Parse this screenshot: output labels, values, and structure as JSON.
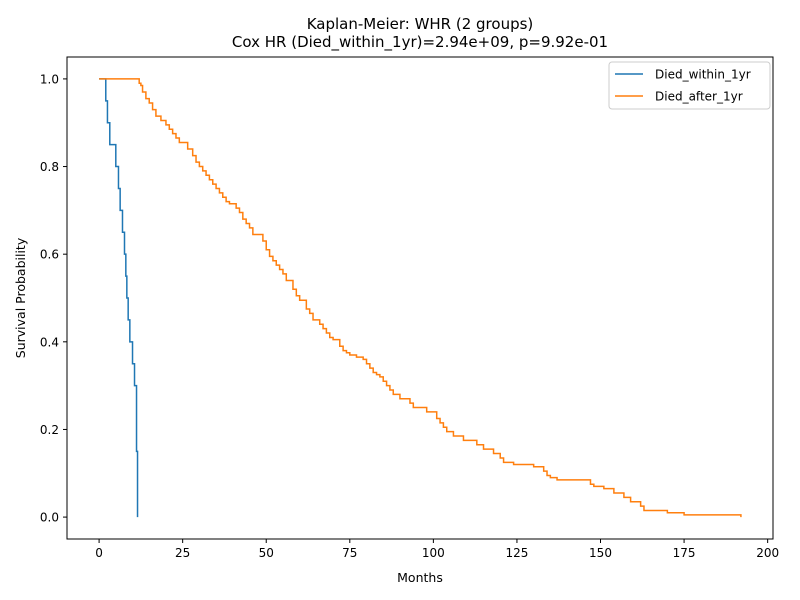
{
  "chart_data": {
    "type": "line",
    "title": "Kaplan-Meier: WHR (2 groups)",
    "subtitle": "Cox HR (Died_within_1yr)=2.94e+09, p=9.92e-01",
    "xlabel": "Months",
    "ylabel": "Survival Probability",
    "xlim": [
      -9.6,
      201.6
    ],
    "ylim": [
      -0.05,
      1.05
    ],
    "xticks": [
      0,
      25,
      50,
      75,
      100,
      125,
      150,
      175,
      200
    ],
    "yticks": [
      0.0,
      0.2,
      0.4,
      0.6,
      0.8,
      1.0
    ],
    "xtick_labels": [
      "0",
      "25",
      "50",
      "75",
      "100",
      "125",
      "150",
      "175",
      "200"
    ],
    "ytick_labels": [
      "0.0",
      "0.2",
      "0.4",
      "0.6",
      "0.8",
      "1.0"
    ],
    "grid": false,
    "legend_position": "top-right",
    "series": [
      {
        "name": "Died_within_1yr",
        "color": "#1f77b4",
        "step": "post",
        "x": [
          0,
          2.0,
          2.5,
          3.2,
          5.0,
          5.8,
          6.3,
          7.0,
          7.6,
          8.0,
          8.3,
          8.7,
          9.2,
          10.0,
          10.6,
          11.2,
          11.5
        ],
        "y": [
          1.0,
          0.95,
          0.9,
          0.85,
          0.8,
          0.75,
          0.7,
          0.65,
          0.6,
          0.55,
          0.5,
          0.45,
          0.4,
          0.35,
          0.3,
          0.15,
          0.0
        ]
      },
      {
        "name": "Died_after_1yr",
        "color": "#ff7f0e",
        "step": "post",
        "x": [
          0,
          12.0,
          12.5,
          13.0,
          14.0,
          15.0,
          16.0,
          17.0,
          18.5,
          20.0,
          21.0,
          22.0,
          23.0,
          24.0,
          26.5,
          28.0,
          29.0,
          30.0,
          31.0,
          32.0,
          33.0,
          34.0,
          35.0,
          36.0,
          37.0,
          38.0,
          39.0,
          41.0,
          42.0,
          43.0,
          44.0,
          45.0,
          46.0,
          49.0,
          50.0,
          51.0,
          52.0,
          53.0,
          54.0,
          55.0,
          56.0,
          58.0,
          59.0,
          60.0,
          62.0,
          63.0,
          64.0,
          66.0,
          67.0,
          68.0,
          69.0,
          70.0,
          72.0,
          73.0,
          74.0,
          75.0,
          77.0,
          79.0,
          80.0,
          81.0,
          82.0,
          83.0,
          84.0,
          85.0,
          86.0,
          87.0,
          88.0,
          90.0,
          93.0,
          94.0,
          98.0,
          101.0,
          102.0,
          103.0,
          104.0,
          106.0,
          109.0,
          113.0,
          115.0,
          118.0,
          120.0,
          121.0,
          124.0,
          130.0,
          133.0,
          134.0,
          135.0,
          137.0,
          147.0,
          148.0,
          151.0,
          154.0,
          157.0,
          159.0,
          162.0,
          163.0,
          170.0,
          175.0,
          192.0
        ],
        "y": [
          1.0,
          0.99,
          0.985,
          0.97,
          0.955,
          0.945,
          0.93,
          0.915,
          0.905,
          0.895,
          0.885,
          0.875,
          0.865,
          0.855,
          0.84,
          0.825,
          0.81,
          0.8,
          0.79,
          0.78,
          0.77,
          0.76,
          0.75,
          0.74,
          0.73,
          0.72,
          0.715,
          0.705,
          0.695,
          0.68,
          0.67,
          0.66,
          0.645,
          0.63,
          0.61,
          0.595,
          0.585,
          0.575,
          0.565,
          0.555,
          0.54,
          0.52,
          0.505,
          0.495,
          0.475,
          0.465,
          0.45,
          0.44,
          0.43,
          0.42,
          0.41,
          0.405,
          0.39,
          0.38,
          0.375,
          0.37,
          0.365,
          0.36,
          0.35,
          0.34,
          0.33,
          0.325,
          0.32,
          0.31,
          0.3,
          0.29,
          0.28,
          0.27,
          0.26,
          0.25,
          0.24,
          0.225,
          0.215,
          0.205,
          0.195,
          0.185,
          0.175,
          0.165,
          0.155,
          0.145,
          0.135,
          0.125,
          0.12,
          0.115,
          0.105,
          0.095,
          0.09,
          0.085,
          0.075,
          0.07,
          0.065,
          0.055,
          0.045,
          0.035,
          0.025,
          0.015,
          0.01,
          0.005,
          0.0
        ]
      }
    ]
  }
}
